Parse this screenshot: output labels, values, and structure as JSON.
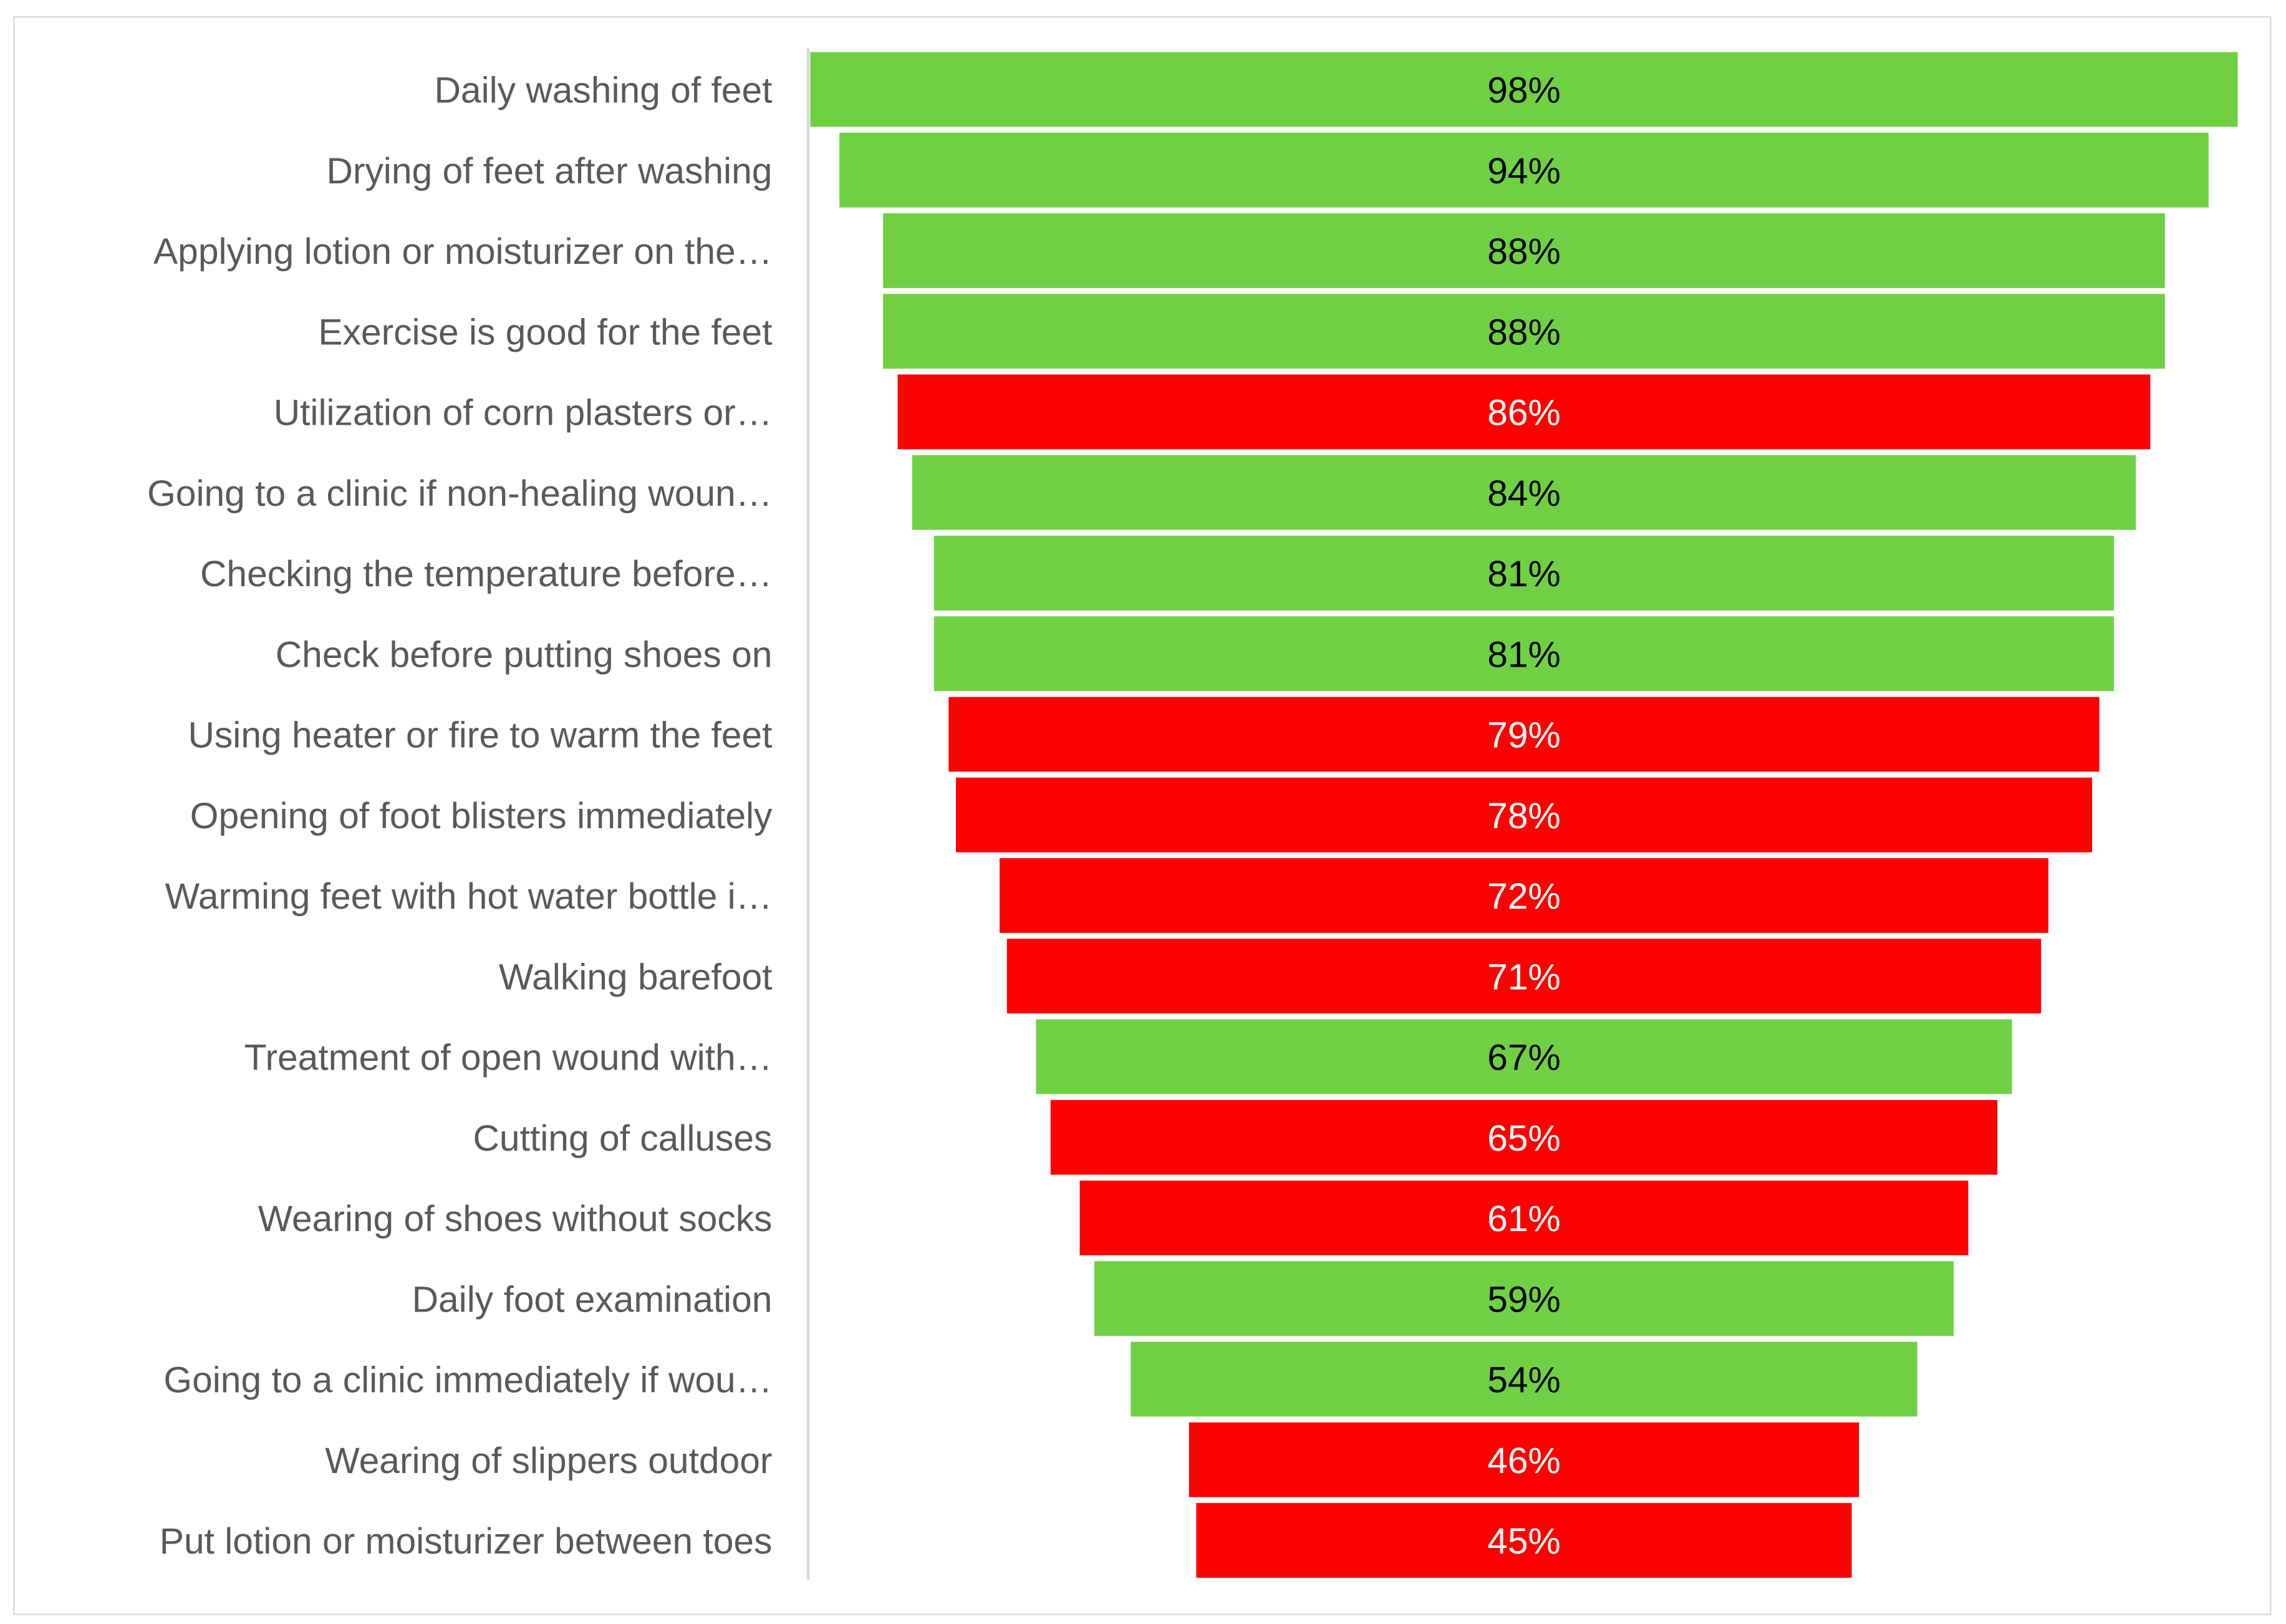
{
  "chart_data": {
    "type": "bar",
    "orientation": "horizontal-funnel",
    "title": "",
    "xlabel": "",
    "ylabel": "",
    "xlim": [
      0,
      100
    ],
    "grid": false,
    "legend": "none",
    "categories": [
      "Daily washing of feet",
      "Drying of feet after washing",
      "Applying lotion or moisturizer on the…",
      "Exercise is good for the feet",
      "Utilization of corn plasters or…",
      "Going to a clinic if non-healing woun…",
      "Checking the temperature before…",
      "Check before putting shoes on",
      "Using heater or fire to warm the feet",
      "Opening of foot blisters immediately",
      "Warming feet with hot water bottle i…",
      "Walking barefoot",
      "Treatment of open wound with…",
      "Cutting of calluses",
      "Wearing of shoes without socks",
      "Daily foot examination",
      "Going to a clinic immediately if wou…",
      "Wearing of slippers outdoor",
      "Put lotion or moisturizer between toes"
    ],
    "values": [
      98,
      94,
      88,
      88,
      86,
      84,
      81,
      81,
      79,
      78,
      72,
      71,
      67,
      65,
      61,
      59,
      54,
      46,
      45
    ],
    "data_labels": [
      "98%",
      "94%",
      "88%",
      "88%",
      "86%",
      "84%",
      "81%",
      "81%",
      "79%",
      "78%",
      "72%",
      "71%",
      "67%",
      "65%",
      "61%",
      "59%",
      "54%",
      "46%",
      "45%"
    ],
    "bar_colors": [
      "green",
      "green",
      "green",
      "green",
      "red",
      "green",
      "green",
      "green",
      "red",
      "red",
      "red",
      "red",
      "green",
      "red",
      "red",
      "green",
      "green",
      "red",
      "red"
    ],
    "colors": {
      "green": "#70D044",
      "red": "#FF0000",
      "label_on_green": "#000000",
      "label_on_red": "#FFFFFF"
    }
  }
}
